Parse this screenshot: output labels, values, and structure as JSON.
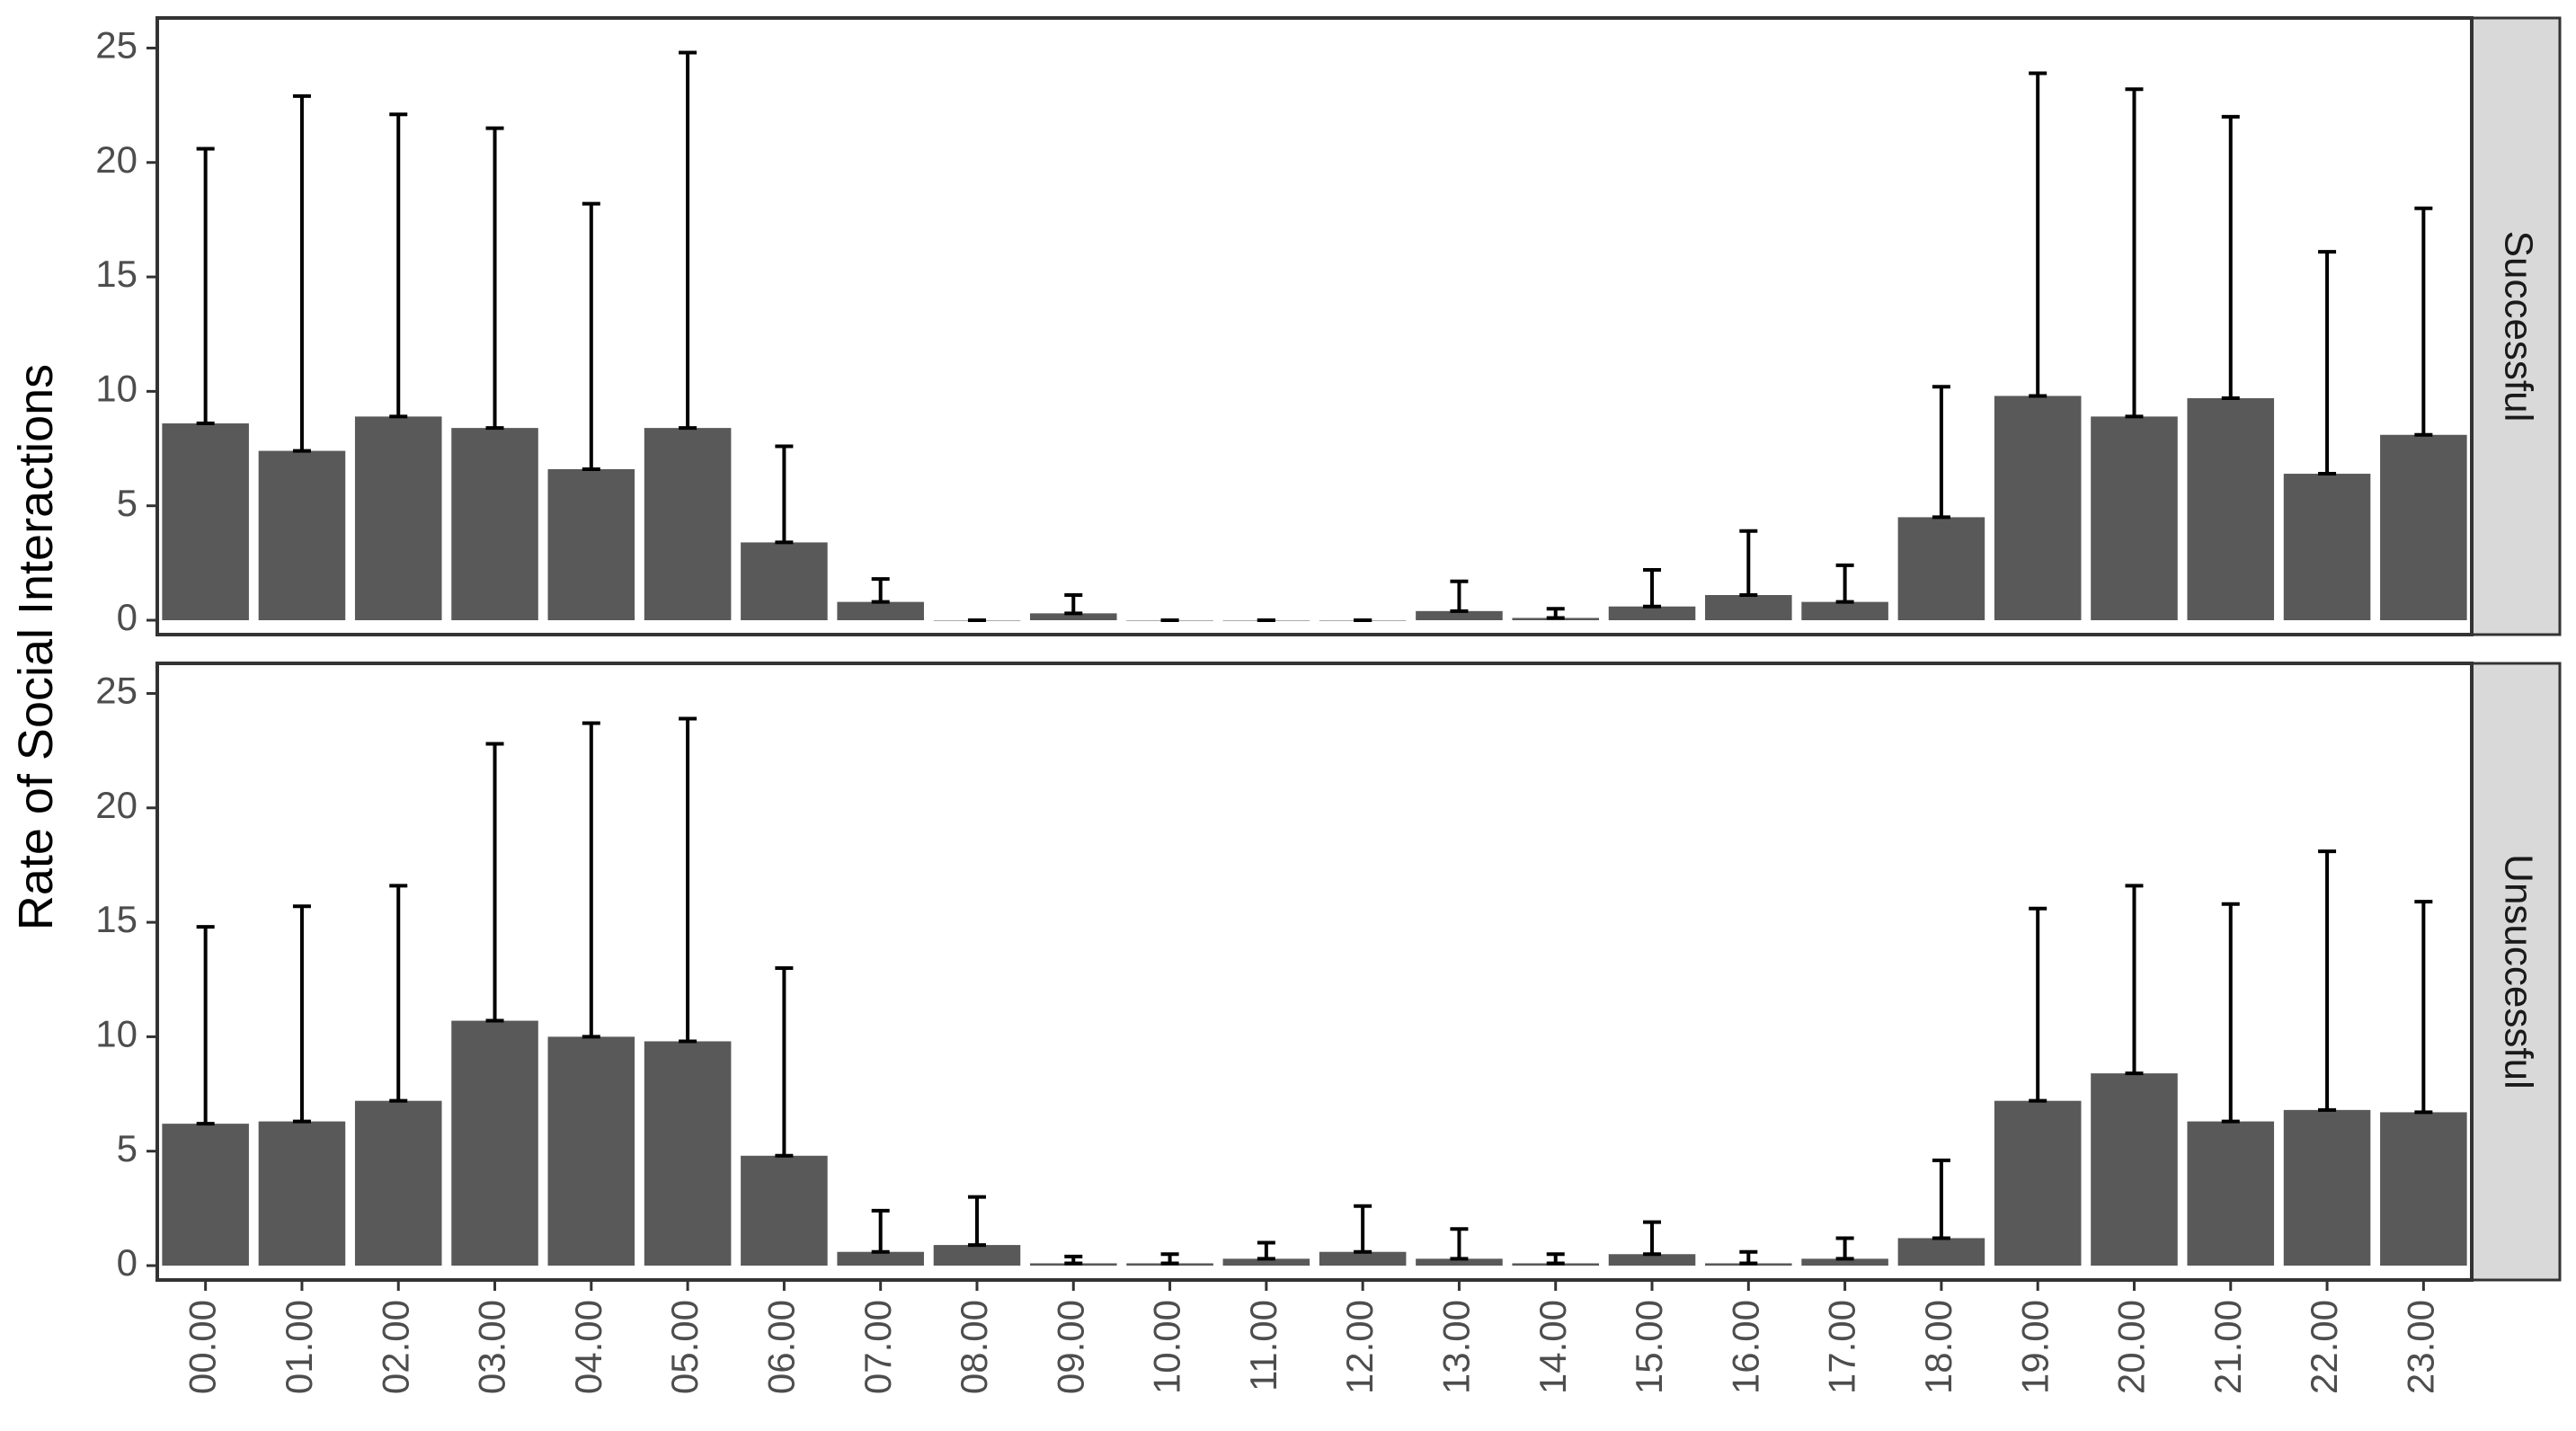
{
  "chart_data": {
    "type": "bar",
    "title": "",
    "xlabel": "",
    "ylabel": "Rate of Social Interactions",
    "ylim": [
      0,
      26
    ],
    "yticks": [
      0,
      5,
      10,
      15,
      20,
      25
    ],
    "grid": false,
    "error_bars": true,
    "categories": [
      "00.00",
      "01.00",
      "02.00",
      "03.00",
      "04.00",
      "05.00",
      "06.00",
      "07.00",
      "08.00",
      "09.00",
      "10.00",
      "11.00",
      "12.00",
      "13.00",
      "14.00",
      "15.00",
      "16.00",
      "17.00",
      "18.00",
      "19.00",
      "20.00",
      "21.00",
      "22.00",
      "23.00"
    ],
    "series": [
      {
        "name": "Successful",
        "values": [
          8.6,
          7.4,
          8.9,
          8.4,
          6.6,
          8.4,
          3.4,
          0.8,
          0.0,
          0.3,
          0.0,
          0.0,
          0.0,
          0.4,
          0.1,
          0.6,
          1.1,
          0.8,
          4.5,
          9.8,
          8.9,
          9.7,
          6.4,
          8.1
        ],
        "error_upper": [
          20.6,
          22.9,
          22.1,
          21.5,
          18.2,
          24.8,
          7.6,
          1.8,
          0.0,
          1.1,
          0.0,
          0.0,
          0.0,
          1.7,
          0.5,
          2.2,
          3.9,
          2.4,
          10.2,
          23.9,
          23.2,
          22.0,
          16.1,
          18.0
        ]
      },
      {
        "name": "Unsuccessful",
        "values": [
          6.2,
          6.3,
          7.2,
          10.7,
          10.0,
          9.8,
          4.8,
          0.6,
          0.9,
          0.1,
          0.1,
          0.3,
          0.6,
          0.3,
          0.1,
          0.5,
          0.1,
          0.3,
          1.2,
          7.2,
          8.4,
          6.3,
          6.8,
          6.7
        ],
        "error_upper": [
          14.8,
          15.7,
          16.6,
          22.8,
          23.7,
          23.9,
          13.0,
          2.4,
          3.0,
          0.4,
          0.5,
          1.0,
          2.6,
          1.6,
          0.5,
          1.9,
          0.6,
          1.2,
          4.6,
          15.6,
          16.6,
          15.8,
          18.1,
          15.9
        ]
      }
    ],
    "colors": {
      "bar": "#595959",
      "error_bar": "#000000",
      "panel_border": "#333333",
      "strip_fill": "#d9d9d9",
      "tick_text": "#4d4d4d"
    }
  }
}
